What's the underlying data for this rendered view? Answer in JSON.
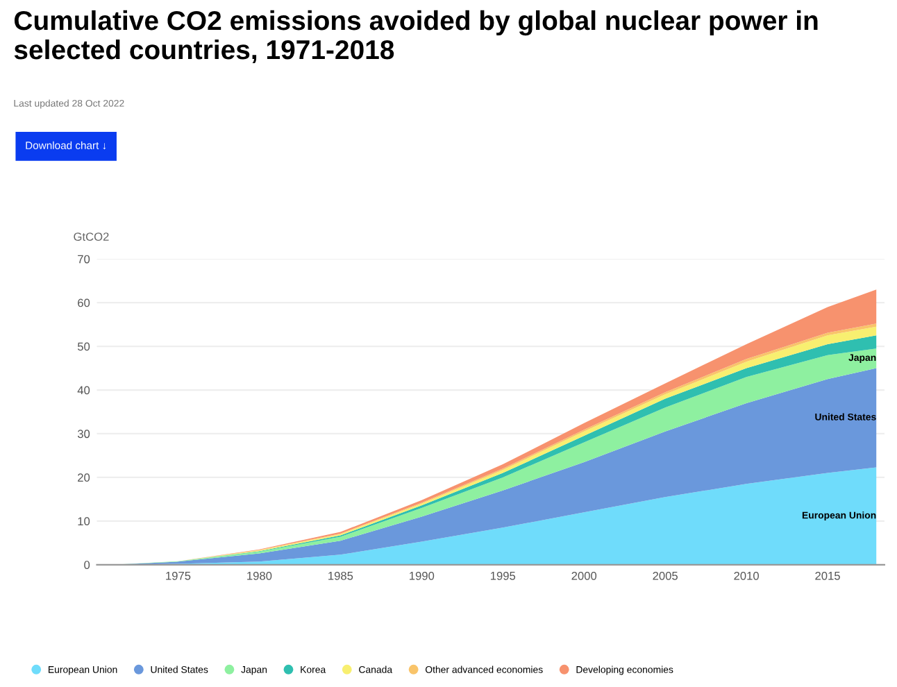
{
  "chart_data": {
    "type": "area",
    "stacked": true,
    "title": "Cumulative CO2 emissions avoided by global nuclear power in selected countries, 1971-2018",
    "subtitle": "Last updated 28 Oct 2022",
    "ylabel": "GtCO2",
    "annotations": [
      "Download chart ↓",
      "European Union",
      "United States",
      "Japan"
    ],
    "x": [
      1971,
      1975,
      1980,
      1985,
      1990,
      1995,
      2000,
      2005,
      2010,
      2015,
      2018
    ],
    "series": [
      {
        "name": "European Union",
        "color": "#6fdcfb",
        "values": [
          0,
          0.2,
          0.7,
          2.3,
          5.3,
          8.5,
          12,
          15.5,
          18.5,
          21,
          22.3
        ]
      },
      {
        "name": "United States",
        "color": "#6a98dc",
        "values": [
          0,
          0.5,
          1.9,
          3.2,
          5.7,
          8.5,
          11.5,
          15,
          18.5,
          21.5,
          22.7
        ]
      },
      {
        "name": "Japan",
        "color": "#8ef0a0",
        "values": [
          0,
          0.1,
          0.4,
          0.9,
          2,
          3,
          4.5,
          5.5,
          6,
          5.5,
          4.5
        ]
      },
      {
        "name": "Korea",
        "color": "#2fbfb0",
        "values": [
          0,
          0,
          0.1,
          0.3,
          0.6,
          1,
          1.5,
          2,
          2,
          2.5,
          3
        ]
      },
      {
        "name": "Canada",
        "color": "#f8ef70",
        "values": [
          0,
          0,
          0.2,
          0.3,
          0.4,
          0.7,
          1,
          1,
          1.5,
          2,
          2
        ]
      },
      {
        "name": "Other advanced economies",
        "color": "#f9c46a",
        "values": [
          0,
          0,
          0.1,
          0.1,
          0.2,
          0.3,
          0.4,
          0.5,
          0.6,
          0.6,
          0.7
        ]
      },
      {
        "name": "Developing economies",
        "color": "#f7926e",
        "values": [
          0,
          0,
          0.1,
          0.4,
          0.6,
          1,
          1.5,
          2,
          3.4,
          5.9,
          7.8
        ]
      }
    ],
    "xlim": [
      1970,
      2018.5
    ],
    "xticks": [
      1975,
      1980,
      1985,
      1990,
      1995,
      2000,
      2005,
      2010,
      2015
    ],
    "ylim": [
      0,
      70
    ],
    "yticks": [
      0,
      10,
      20,
      30,
      40,
      50,
      60,
      70
    ],
    "grid": "y",
    "legend": "bottom"
  }
}
